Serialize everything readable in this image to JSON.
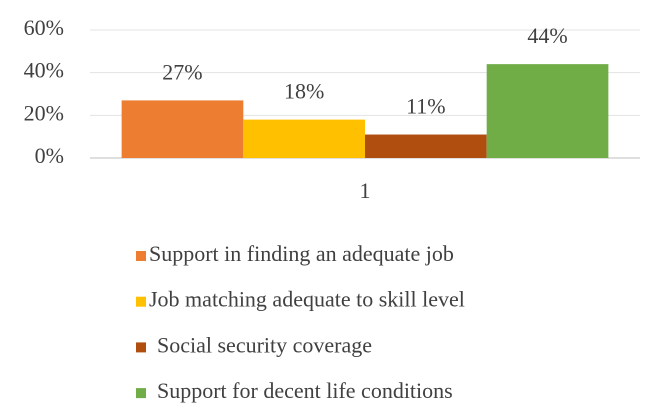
{
  "chart_data": {
    "type": "bar",
    "categories": [
      "1"
    ],
    "series": [
      {
        "name": "Support in finding an adequate job",
        "color": "#ed7d31",
        "values": [
          27
        ],
        "value_labels": [
          "27%"
        ]
      },
      {
        "name": "Job matching adequate to skill level",
        "color": "#ffc000",
        "values": [
          18
        ],
        "value_labels": [
          "18%"
        ]
      },
      {
        "name": "Social security coverage",
        "color": "#b04e10",
        "values": [
          11
        ],
        "value_labels": [
          "11%"
        ]
      },
      {
        "name": "Support for decent life conditions",
        "color": "#70ad47",
        "values": [
          44
        ],
        "value_labels": [
          "44%"
        ]
      }
    ],
    "ylim": [
      0,
      60
    ],
    "yticks": [
      {
        "value": 0,
        "label": "0%"
      },
      {
        "value": 20,
        "label": "20%"
      },
      {
        "value": 40,
        "label": "40%"
      },
      {
        "value": 60,
        "label": "60%"
      }
    ],
    "grid": true,
    "legend": "bottom"
  }
}
